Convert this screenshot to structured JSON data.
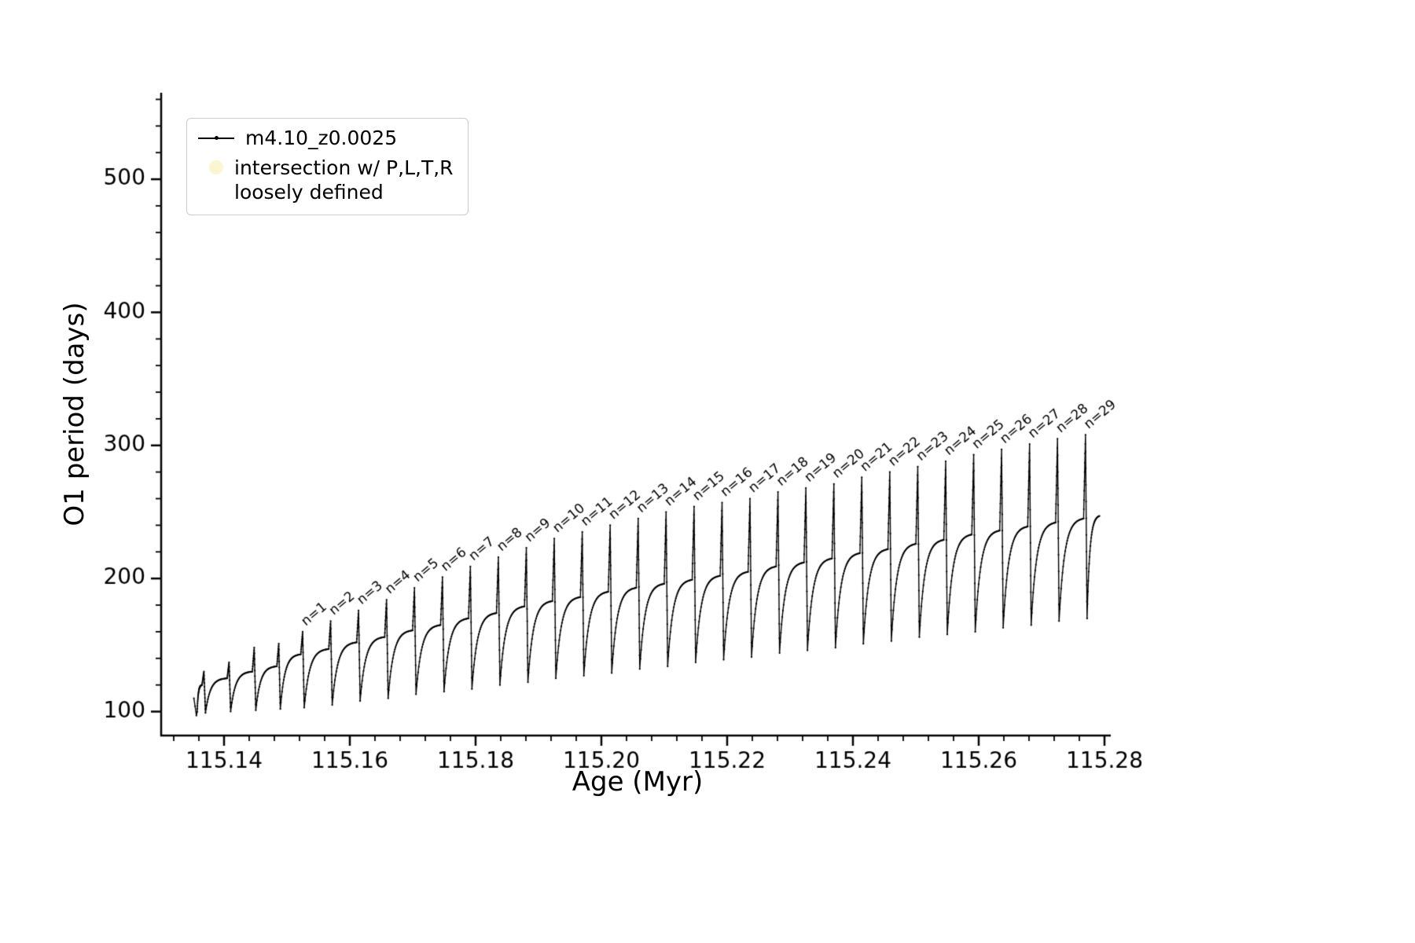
{
  "figure": {
    "background": "#ffffff"
  },
  "axis_labels": {
    "x": "Age (Myr)",
    "y": "O1 period (days)"
  },
  "legend": {
    "position": "upper left",
    "entries": [
      {
        "label": "m4.10_z0.0025",
        "marker": "line-with-dot",
        "color": "#000000"
      },
      {
        "label": "intersection w/ P,L,T,R",
        "label_line2": "loosely defined",
        "marker": "filled-circle",
        "color": "#f5efad"
      }
    ]
  },
  "chart_data": {
    "type": "line",
    "title": "",
    "xlabel": "Age (Myr)",
    "ylabel": "O1 period (days)",
    "xlim": [
      115.13,
      115.281
    ],
    "ylim": [
      82,
      565
    ],
    "grid": false,
    "legend_position": "upper left",
    "xticks": {
      "values": [
        115.14,
        115.16,
        115.18,
        115.2,
        115.22,
        115.24,
        115.26,
        115.28
      ],
      "labels": [
        "115.14",
        "115.16",
        "115.18",
        "115.20",
        "115.22",
        "115.24",
        "115.26",
        "115.28"
      ],
      "minor_interval": 0.004
    },
    "yticks": {
      "values": [
        100,
        200,
        300,
        400,
        500
      ],
      "labels": [
        "100",
        "200",
        "300",
        "400",
        "500"
      ],
      "minor_interval": 20
    },
    "series": [
      {
        "name": "m4.10_z0.0025",
        "color": "#000000",
        "style": "line-with-point-markers",
        "start": {
          "age": 115.1352,
          "period": 110,
          "dip_to": 97
        },
        "end": {
          "age": 115.2792,
          "period": 247
        },
        "pulses": [
          {
            "age": 115.1368,
            "base": 120,
            "peak": 130,
            "min": 99,
            "label": ""
          },
          {
            "age": 115.1408,
            "base": 125,
            "peak": 137,
            "min": 100,
            "label": ""
          },
          {
            "age": 115.1448,
            "base": 130,
            "peak": 148,
            "min": 101,
            "label": ""
          },
          {
            "age": 115.1487,
            "base": 134,
            "peak": 151,
            "min": 102,
            "label": ""
          },
          {
            "age": 115.1525,
            "base": 143,
            "peak": 160,
            "min": 103,
            "label": "n=1"
          },
          {
            "age": 115.15695,
            "base": 147,
            "peak": 168,
            "min": 105,
            "label": "n=2"
          },
          {
            "age": 115.16139,
            "base": 152,
            "peak": 176,
            "min": 108,
            "label": "n=3"
          },
          {
            "age": 115.16584,
            "base": 156,
            "peak": 184,
            "min": 110,
            "label": "n=4"
          },
          {
            "age": 115.17028,
            "base": 161,
            "peak": 193,
            "min": 113,
            "label": "n=5"
          },
          {
            "age": 115.17473,
            "base": 165,
            "peak": 201,
            "min": 115,
            "label": "n=6"
          },
          {
            "age": 115.17917,
            "base": 170,
            "peak": 209,
            "min": 117,
            "label": "n=7"
          },
          {
            "age": 115.18362,
            "base": 174,
            "peak": 216,
            "min": 120,
            "label": "n=8"
          },
          {
            "age": 115.18807,
            "base": 179,
            "peak": 223,
            "min": 122,
            "label": "n=9"
          },
          {
            "age": 115.19251,
            "base": 183,
            "peak": 230,
            "min": 125,
            "label": "n=10"
          },
          {
            "age": 115.19696,
            "base": 186,
            "peak": 235,
            "min": 127,
            "label": "n=11"
          },
          {
            "age": 115.2014,
            "base": 190,
            "peak": 240,
            "min": 129,
            "label": "n=12"
          },
          {
            "age": 115.20585,
            "base": 193,
            "peak": 245,
            "min": 132,
            "label": "n=13"
          },
          {
            "age": 115.21029,
            "base": 196,
            "peak": 250,
            "min": 134,
            "label": "n=14"
          },
          {
            "age": 115.21474,
            "base": 199,
            "peak": 254,
            "min": 137,
            "label": "n=15"
          },
          {
            "age": 115.21919,
            "base": 202,
            "peak": 257,
            "min": 139,
            "label": "n=16"
          },
          {
            "age": 115.22363,
            "base": 205,
            "peak": 260,
            "min": 141,
            "label": "n=17"
          },
          {
            "age": 115.22808,
            "base": 209,
            "peak": 265,
            "min": 144,
            "label": "n=18"
          },
          {
            "age": 115.23252,
            "base": 212,
            "peak": 268,
            "min": 146,
            "label": "n=19"
          },
          {
            "age": 115.23697,
            "base": 215,
            "peak": 271,
            "min": 148,
            "label": "n=20"
          },
          {
            "age": 115.24141,
            "base": 219,
            "peak": 276,
            "min": 151,
            "label": "n=21"
          },
          {
            "age": 115.24586,
            "base": 222,
            "peak": 280,
            "min": 153,
            "label": "n=22"
          },
          {
            "age": 115.25031,
            "base": 226,
            "peak": 284,
            "min": 156,
            "label": "n=23"
          },
          {
            "age": 115.25475,
            "base": 229,
            "peak": 288,
            "min": 158,
            "label": "n=24"
          },
          {
            "age": 115.2592,
            "base": 233,
            "peak": 293,
            "min": 160,
            "label": "n=25"
          },
          {
            "age": 115.26364,
            "base": 236,
            "peak": 297,
            "min": 163,
            "label": "n=26"
          },
          {
            "age": 115.26809,
            "base": 239,
            "peak": 301,
            "min": 165,
            "label": "n=27"
          },
          {
            "age": 115.27253,
            "base": 242,
            "peak": 305,
            "min": 168,
            "label": "n=28"
          },
          {
            "age": 115.27698,
            "base": 245,
            "peak": 308,
            "min": 170,
            "label": "n=29"
          }
        ]
      }
    ]
  }
}
